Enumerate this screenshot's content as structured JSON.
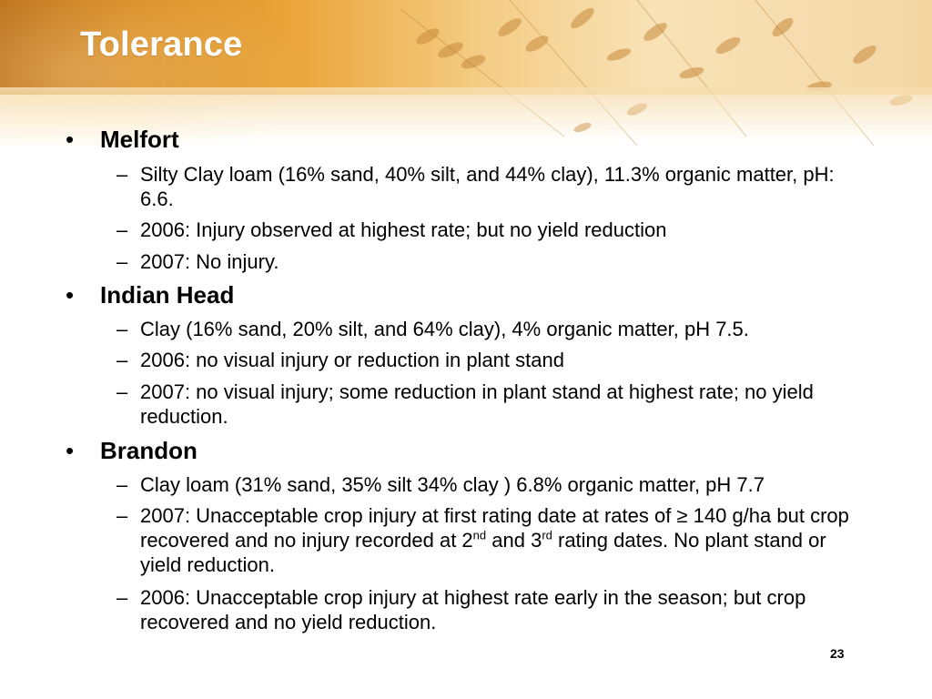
{
  "slide": {
    "title": "Tolerance",
    "page_number": "23"
  },
  "sections": [
    {
      "heading": "Melfort",
      "items": [
        {
          "text": "Silty Clay loam (16% sand, 40% silt, and 44% clay), 11.3% organic matter, pH: 6.6."
        },
        {
          "text": "2006: Injury observed at highest rate; but no yield reduction"
        },
        {
          "text": "2007:  No injury."
        }
      ]
    },
    {
      "heading": "Indian Head",
      "items": [
        {
          "text": "Clay (16% sand, 20% silt, and 64% clay), 4% organic matter, pH 7.5."
        },
        {
          "text": "2006:  no visual injury or reduction in plant stand"
        },
        {
          "text": "2007:  no visual injury; some reduction in plant stand at highest rate; no yield reduction."
        }
      ]
    },
    {
      "heading": "Brandon",
      "items": [
        {
          "text": "Clay loam (31% sand, 35% silt 34% clay ) 6.8% organic matter, pH 7.7"
        },
        {
          "part1": "2007:  Unacceptable crop injury at first rating date at rates of ≥ 140 g/ha but crop recovered and no injury recorded at 2",
          "sup1": "nd",
          "part2": " and 3",
          "sup2": "rd",
          "part3": " rating dates.  No plant stand or yield reduction."
        },
        {
          "text": "2006:  Unacceptable crop injury at highest rate early in the season; but crop recovered and no yield reduction."
        }
      ]
    }
  ],
  "symbols": {
    "bullet": "•",
    "dash": "–"
  },
  "colors": {
    "title": "#ffffff",
    "header_accent": "#d7891f",
    "text": "#000000"
  }
}
